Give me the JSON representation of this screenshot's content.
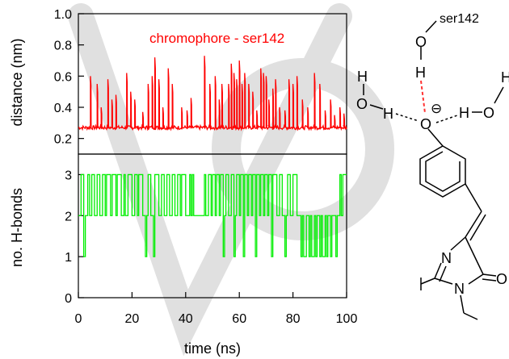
{
  "chart_data": [
    {
      "type": "line",
      "ylabel": "distance (nm)",
      "ylim": [
        0.1,
        1.0
      ],
      "xlim": [
        0,
        100
      ],
      "yticks": [
        "1.0",
        "0.8",
        "0.6",
        "0.4",
        "0.2"
      ],
      "grid": false,
      "series": [
        {
          "name": "chromophore - ser142",
          "color": "#ff0000",
          "baseline": 0.27,
          "spikes": [
            {
              "x": 4.5,
              "y": 0.6
            },
            {
              "x": 7.0,
              "y": 0.55
            },
            {
              "x": 8.5,
              "y": 0.4
            },
            {
              "x": 11.0,
              "y": 0.58
            },
            {
              "x": 12.5,
              "y": 0.45
            },
            {
              "x": 14.0,
              "y": 0.48
            },
            {
              "x": 18.0,
              "y": 0.62
            },
            {
              "x": 19.5,
              "y": 0.5
            },
            {
              "x": 21.0,
              "y": 0.45
            },
            {
              "x": 24.0,
              "y": 0.37
            },
            {
              "x": 26.0,
              "y": 0.55
            },
            {
              "x": 27.5,
              "y": 0.6
            },
            {
              "x": 28.5,
              "y": 0.72
            },
            {
              "x": 30.0,
              "y": 0.58
            },
            {
              "x": 31.5,
              "y": 0.4
            },
            {
              "x": 33.5,
              "y": 0.65
            },
            {
              "x": 35.0,
              "y": 0.55
            },
            {
              "x": 38.5,
              "y": 0.4
            },
            {
              "x": 40.5,
              "y": 0.38
            },
            {
              "x": 42.0,
              "y": 0.46
            },
            {
              "x": 47.0,
              "y": 0.73
            },
            {
              "x": 49.0,
              "y": 0.55
            },
            {
              "x": 51.0,
              "y": 0.6
            },
            {
              "x": 52.5,
              "y": 0.45
            },
            {
              "x": 53.5,
              "y": 0.55
            },
            {
              "x": 56.0,
              "y": 0.55
            },
            {
              "x": 57.0,
              "y": 0.68
            },
            {
              "x": 58.0,
              "y": 0.62
            },
            {
              "x": 59.0,
              "y": 0.58
            },
            {
              "x": 60.0,
              "y": 0.7
            },
            {
              "x": 61.0,
              "y": 0.55
            },
            {
              "x": 62.0,
              "y": 0.62
            },
            {
              "x": 63.5,
              "y": 0.55
            },
            {
              "x": 65.0,
              "y": 0.5
            },
            {
              "x": 66.5,
              "y": 0.38
            },
            {
              "x": 68.0,
              "y": 0.65
            },
            {
              "x": 69.0,
              "y": 0.62
            },
            {
              "x": 70.0,
              "y": 0.6
            },
            {
              "x": 71.0,
              "y": 0.45
            },
            {
              "x": 72.5,
              "y": 0.52
            },
            {
              "x": 73.5,
              "y": 0.58
            },
            {
              "x": 75.0,
              "y": 0.4
            },
            {
              "x": 77.0,
              "y": 0.38
            },
            {
              "x": 78.5,
              "y": 0.58
            },
            {
              "x": 80.0,
              "y": 0.55
            },
            {
              "x": 81.5,
              "y": 0.6
            },
            {
              "x": 83.5,
              "y": 0.45
            },
            {
              "x": 85.5,
              "y": 0.4
            },
            {
              "x": 88.0,
              "y": 0.62
            },
            {
              "x": 90.0,
              "y": 0.55
            },
            {
              "x": 92.0,
              "y": 0.38
            },
            {
              "x": 94.0,
              "y": 0.45
            },
            {
              "x": 95.5,
              "y": 0.35
            },
            {
              "x": 97.5,
              "y": 0.4
            },
            {
              "x": 99.0,
              "y": 0.36
            }
          ]
        }
      ]
    },
    {
      "type": "line",
      "xlabel": "time (ns)",
      "ylabel": "no. H-bonds",
      "ylim": [
        0,
        3.5
      ],
      "xlim": [
        0,
        100
      ],
      "xticks": [
        "0",
        "20",
        "40",
        "60",
        "80",
        "100"
      ],
      "yticks": [
        "3",
        "2",
        "1",
        "0"
      ],
      "grid": false,
      "series": [
        {
          "color": "#00ee00",
          "steps": [
            [
              0,
              2
            ],
            [
              1,
              3
            ],
            [
              2,
              1
            ],
            [
              2.6,
              2
            ],
            [
              3.5,
              3
            ],
            [
              4.2,
              2
            ],
            [
              5,
              3
            ],
            [
              6,
              2
            ],
            [
              7,
              3
            ],
            [
              8,
              2
            ],
            [
              9,
              3
            ],
            [
              10,
              2
            ],
            [
              10.5,
              3
            ],
            [
              12,
              2
            ],
            [
              12.6,
              3
            ],
            [
              14,
              2
            ],
            [
              14.5,
              3
            ],
            [
              16,
              2
            ],
            [
              17,
              3
            ],
            [
              17.5,
              2
            ],
            [
              18.5,
              3
            ],
            [
              20,
              2
            ],
            [
              21,
              3
            ],
            [
              22,
              2
            ],
            [
              22.5,
              3
            ],
            [
              24,
              2
            ],
            [
              25,
              1
            ],
            [
              25.5,
              2
            ],
            [
              26,
              3
            ],
            [
              27,
              2
            ],
            [
              28,
              1
            ],
            [
              28.5,
              3
            ],
            [
              30,
              2
            ],
            [
              31,
              3
            ],
            [
              32,
              2
            ],
            [
              33,
              3
            ],
            [
              34,
              2
            ],
            [
              35,
              3
            ],
            [
              36,
              2
            ],
            [
              37,
              3
            ],
            [
              38,
              2
            ],
            [
              38.5,
              3
            ],
            [
              40,
              2
            ],
            [
              41.5,
              3
            ],
            [
              42,
              2
            ],
            [
              42.5,
              3
            ],
            [
              43,
              2
            ],
            [
              47,
              3
            ],
            [
              47.5,
              2
            ],
            [
              48.5,
              3
            ],
            [
              49.5,
              2
            ],
            [
              50,
              3
            ],
            [
              51,
              2
            ],
            [
              51.5,
              3
            ],
            [
              52.5,
              2
            ],
            [
              53,
              3
            ],
            [
              54,
              1
            ],
            [
              54.5,
              2
            ],
            [
              55,
              3
            ],
            [
              56,
              2
            ],
            [
              57,
              3
            ],
            [
              58,
              1
            ],
            [
              58.5,
              2
            ],
            [
              59,
              3
            ],
            [
              60,
              2
            ],
            [
              60.5,
              3
            ],
            [
              61.5,
              1
            ],
            [
              62,
              3
            ],
            [
              63,
              2
            ],
            [
              63.5,
              3
            ],
            [
              64.5,
              2
            ],
            [
              65,
              3
            ],
            [
              66,
              1
            ],
            [
              66.5,
              3
            ],
            [
              67.5,
              2
            ],
            [
              68,
              3
            ],
            [
              69,
              2
            ],
            [
              69.5,
              3
            ],
            [
              70.5,
              2
            ],
            [
              71,
              3
            ],
            [
              72,
              1
            ],
            [
              72.5,
              3
            ],
            [
              74,
              2
            ],
            [
              75,
              3
            ],
            [
              76,
              2
            ],
            [
              77,
              1
            ],
            [
              77.5,
              2
            ],
            [
              78,
              3
            ],
            [
              79,
              2
            ],
            [
              80,
              3
            ],
            [
              81.5,
              2
            ],
            [
              83,
              1
            ],
            [
              83.5,
              2
            ],
            [
              84,
              1
            ],
            [
              85,
              2
            ],
            [
              86,
              1
            ],
            [
              86.5,
              2
            ],
            [
              87,
              1
            ],
            [
              88,
              2
            ],
            [
              88.5,
              1
            ],
            [
              89,
              2
            ],
            [
              90,
              1
            ],
            [
              90.5,
              2
            ],
            [
              91,
              1
            ],
            [
              92,
              2
            ],
            [
              92.5,
              1
            ],
            [
              93,
              2
            ],
            [
              94,
              1
            ],
            [
              94.5,
              2
            ],
            [
              96,
              1
            ],
            [
              96.5,
              2
            ],
            [
              97.5,
              3
            ],
            [
              98,
              2
            ],
            [
              98.6,
              3
            ],
            [
              100,
              3
            ]
          ]
        }
      ]
    }
  ],
  "molecule": {
    "labels": {
      "ser142": "ser142",
      "o_ser": "O",
      "h_ser": "H",
      "h_left_top": "H",
      "o_left": "O",
      "h_left_mid": "H",
      "o_phenolate": "O",
      "charge": "⊖",
      "h_right": "H",
      "o_right": "O",
      "h_right_top": "H",
      "n_ring": "N",
      "n_ring_bottom": "N",
      "o_carbonyl": "O"
    },
    "hbond_color": "#ff3333"
  },
  "watermark": {
    "color": "#e0e0e0"
  }
}
